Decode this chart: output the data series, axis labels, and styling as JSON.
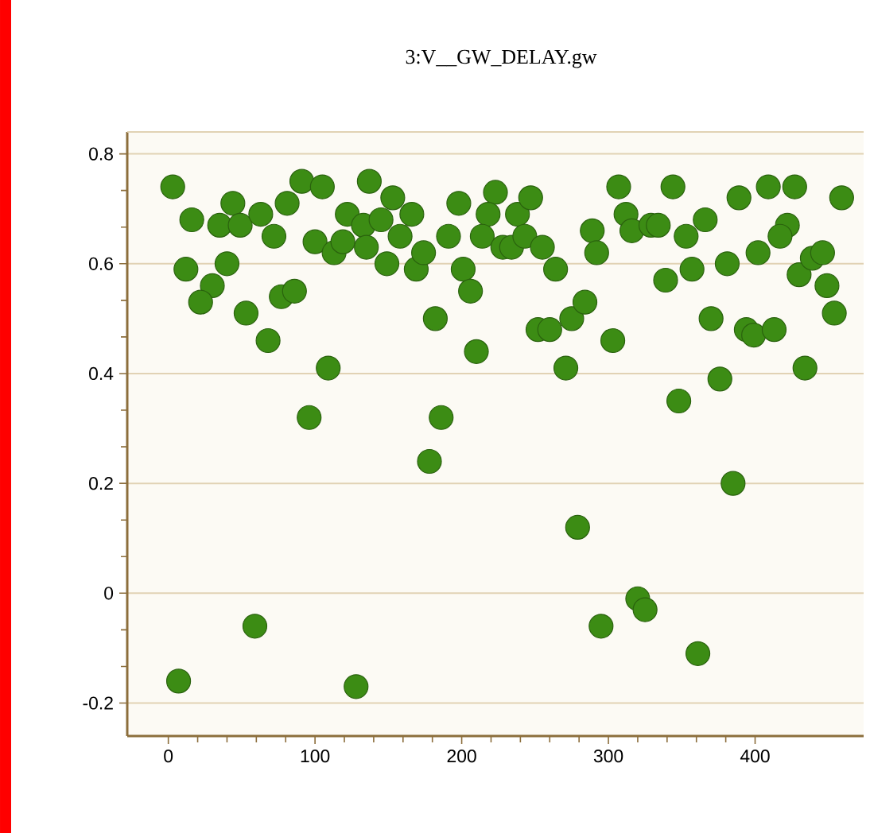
{
  "chart_data": {
    "type": "scatter",
    "title": "3:V__GW_DELAY.gw",
    "x": [
      3,
      16,
      44,
      35,
      49,
      63,
      81,
      91,
      105,
      72,
      12,
      40,
      30,
      22,
      53,
      77,
      86,
      68,
      109,
      96,
      59,
      7,
      128,
      100,
      113,
      119,
      122,
      137,
      133,
      135,
      153,
      145,
      166,
      158,
      149,
      169,
      174,
      191,
      198,
      223,
      218,
      214,
      228,
      234,
      238,
      247,
      243,
      255,
      264,
      201,
      206,
      182,
      210,
      252,
      260,
      275,
      284,
      271,
      289,
      292,
      186,
      178,
      279,
      295,
      307,
      344,
      312,
      316,
      329,
      334,
      353,
      366,
      389,
      409,
      427,
      459,
      422,
      417,
      339,
      357,
      381,
      402,
      430,
      439,
      446,
      449,
      454,
      370,
      394,
      399,
      413,
      303,
      376,
      434,
      348,
      385,
      320,
      325,
      361
    ],
    "values": [
      0.74,
      0.68,
      0.71,
      0.67,
      0.67,
      0.69,
      0.71,
      0.75,
      0.74,
      0.65,
      0.59,
      0.6,
      0.56,
      0.53,
      0.51,
      0.54,
      0.55,
      0.46,
      0.41,
      0.32,
      -0.06,
      -0.16,
      -0.17,
      0.64,
      0.62,
      0.64,
      0.69,
      0.75,
      0.67,
      0.63,
      0.72,
      0.68,
      0.69,
      0.65,
      0.6,
      0.59,
      0.62,
      0.65,
      0.71,
      0.73,
      0.69,
      0.65,
      0.63,
      0.63,
      0.69,
      0.72,
      0.65,
      0.63,
      0.59,
      0.59,
      0.55,
      0.5,
      0.44,
      0.48,
      0.48,
      0.5,
      0.53,
      0.41,
      0.66,
      0.62,
      0.32,
      0.24,
      0.12,
      -0.06,
      0.74,
      0.74,
      0.69,
      0.66,
      0.67,
      0.67,
      0.65,
      0.68,
      0.72,
      0.74,
      0.74,
      0.72,
      0.67,
      0.65,
      0.57,
      0.59,
      0.6,
      0.62,
      0.58,
      0.61,
      0.62,
      0.56,
      0.51,
      0.5,
      0.48,
      0.47,
      0.48,
      0.46,
      0.39,
      0.41,
      0.35,
      0.2,
      -0.01,
      -0.03,
      -0.11
    ],
    "color": "#3c8c14",
    "marker": "circle",
    "grid": "y",
    "xlim": [
      -28,
      474
    ],
    "ylim": [
      -0.26,
      0.84
    ],
    "xticks": [
      0,
      100,
      200,
      300,
      400
    ],
    "yticks": [
      -0.2,
      0,
      0.2,
      0.4,
      0.6,
      0.8
    ]
  }
}
